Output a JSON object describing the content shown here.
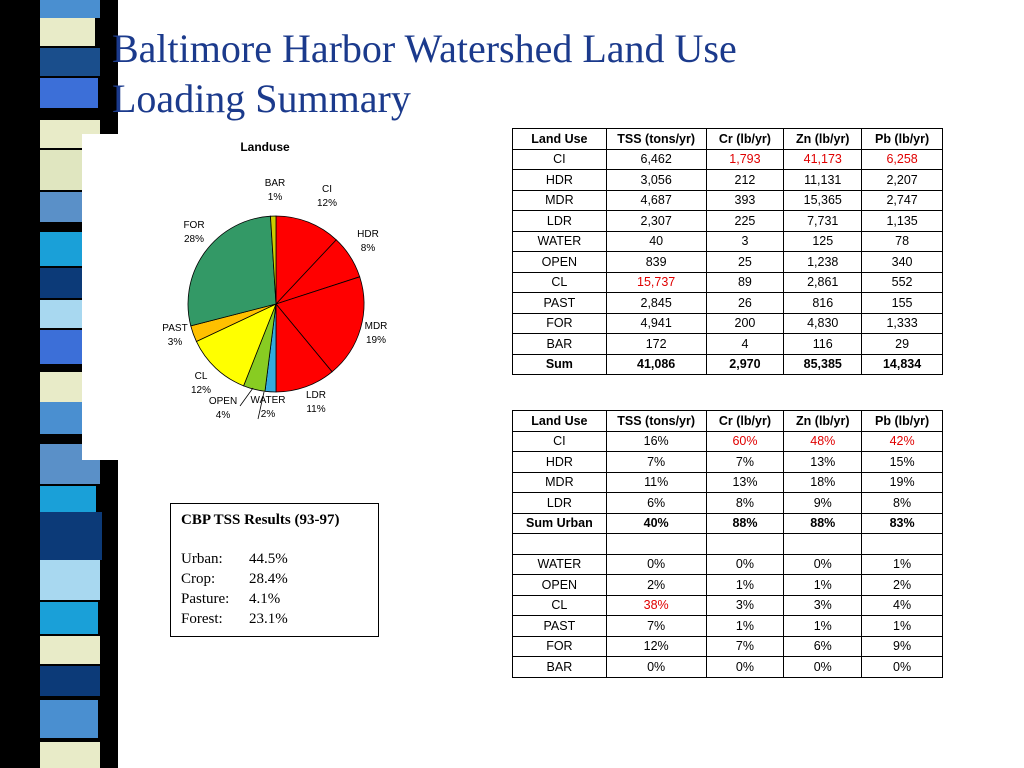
{
  "slide": {
    "title_line1": "Baltimore Harbor Watershed Land Use",
    "title_line2": "Loading Summary",
    "title_color": "#1b3a8c"
  },
  "chart_data": {
    "type": "pie",
    "title": "Landuse",
    "slices": [
      {
        "label": "CI",
        "percent": "12%",
        "value": 12,
        "color": "#ff0000"
      },
      {
        "label": "HDR",
        "percent": "8%",
        "value": 8,
        "color": "#ff0000"
      },
      {
        "label": "MDR",
        "percent": "19%",
        "value": 19,
        "color": "#ff0000"
      },
      {
        "label": "LDR",
        "percent": "11%",
        "value": 11,
        "color": "#ff0000"
      },
      {
        "label": "WATER",
        "percent": "2%",
        "value": 2,
        "color": "#33aadd"
      },
      {
        "label": "OPEN",
        "percent": "4%",
        "value": 4,
        "color": "#88cc22"
      },
      {
        "label": "CL",
        "percent": "12%",
        "value": 12,
        "color": "#ffff00"
      },
      {
        "label": "PAST",
        "percent": "3%",
        "value": 3,
        "color": "#ffc000"
      },
      {
        "label": "FOR",
        "percent": "28%",
        "value": 28,
        "color": "#339966"
      },
      {
        "label": "BAR",
        "percent": "1%",
        "value": 1,
        "color": "#cccc00"
      }
    ]
  },
  "cbp": {
    "title": "CBP TSS Results (93-97)",
    "rows": [
      {
        "label": "Urban:",
        "value": "44.5%"
      },
      {
        "label": "Crop:",
        "value": "28.4%"
      },
      {
        "label": "Pasture:",
        "value": "4.1%"
      },
      {
        "label": "Forest:",
        "value": "23.1%"
      }
    ]
  },
  "tables": {
    "headers": [
      "Land Use",
      "TSS (tons/yr)",
      "Cr (lb/yr)",
      "Zn (lb/yr)",
      "Pb (lb/yr)"
    ],
    "highlight_color": "#e00000",
    "loads": [
      {
        "cells": [
          "CI",
          "6,462",
          "1,793",
          "41,173",
          "6,258"
        ],
        "red": [
          2,
          3,
          4
        ]
      },
      {
        "cells": [
          "HDR",
          "3,056",
          "212",
          "11,131",
          "2,207"
        ],
        "red": []
      },
      {
        "cells": [
          "MDR",
          "4,687",
          "393",
          "15,365",
          "2,747"
        ],
        "red": []
      },
      {
        "cells": [
          "LDR",
          "2,307",
          "225",
          "7,731",
          "1,135"
        ],
        "red": []
      },
      {
        "cells": [
          "WATER",
          "40",
          "3",
          "125",
          "78"
        ],
        "red": []
      },
      {
        "cells": [
          "OPEN",
          "839",
          "25",
          "1,238",
          "340"
        ],
        "red": []
      },
      {
        "cells": [
          "CL",
          "15,737",
          "89",
          "2,861",
          "552"
        ],
        "red": [
          1
        ]
      },
      {
        "cells": [
          "PAST",
          "2,845",
          "26",
          "816",
          "155"
        ],
        "red": []
      },
      {
        "cells": [
          "FOR",
          "4,941",
          "200",
          "4,830",
          "1,333"
        ],
        "red": []
      },
      {
        "cells": [
          "BAR",
          "172",
          "4",
          "116",
          "29"
        ],
        "red": []
      },
      {
        "cells": [
          "Sum",
          "41,086",
          "2,970",
          "85,385",
          "14,834"
        ],
        "red": [],
        "bold": true
      }
    ],
    "percents": [
      {
        "cells": [
          "CI",
          "16%",
          "60%",
          "48%",
          "42%"
        ],
        "red": [
          2,
          3,
          4
        ]
      },
      {
        "cells": [
          "HDR",
          "7%",
          "7%",
          "13%",
          "15%"
        ],
        "red": []
      },
      {
        "cells": [
          "MDR",
          "11%",
          "13%",
          "18%",
          "19%"
        ],
        "red": []
      },
      {
        "cells": [
          "LDR",
          "6%",
          "8%",
          "9%",
          "8%"
        ],
        "red": []
      },
      {
        "cells": [
          "Sum Urban",
          "40%",
          "88%",
          "88%",
          "83%"
        ],
        "red": [],
        "bold": true
      },
      {
        "cells": [
          "",
          "",
          "",
          "",
          ""
        ],
        "red": [],
        "blank": true
      },
      {
        "cells": [
          "WATER",
          "0%",
          "0%",
          "0%",
          "1%"
        ],
        "red": []
      },
      {
        "cells": [
          "OPEN",
          "2%",
          "1%",
          "1%",
          "2%"
        ],
        "red": []
      },
      {
        "cells": [
          "CL",
          "38%",
          "3%",
          "3%",
          "4%"
        ],
        "red": [
          1
        ]
      },
      {
        "cells": [
          "PAST",
          "7%",
          "1%",
          "1%",
          "1%"
        ],
        "red": []
      },
      {
        "cells": [
          "FOR",
          "12%",
          "7%",
          "6%",
          "9%"
        ],
        "red": []
      },
      {
        "cells": [
          "BAR",
          "0%",
          "0%",
          "0%",
          "0%"
        ],
        "red": []
      }
    ]
  }
}
